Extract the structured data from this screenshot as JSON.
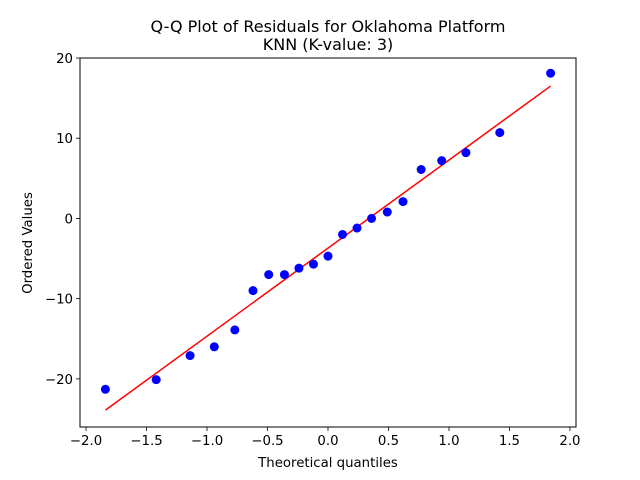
{
  "chart_data": {
    "type": "scatter",
    "title_line1": "Q-Q Plot of Residuals for Oklahoma Platform",
    "title_line2": "KNN (K-value: 3)",
    "xlabel": "Theoretical quantiles",
    "ylabel": "Ordered Values",
    "xlim": [
      -2.05,
      2.05
    ],
    "ylim": [
      -26,
      20
    ],
    "xticks": [
      -2.0,
      -1.5,
      -1.0,
      -0.5,
      0.0,
      0.5,
      1.0,
      1.5,
      2.0
    ],
    "xtick_labels": [
      "−2.0",
      "−1.5",
      "−1.0",
      "−0.5",
      "0.0",
      "0.5",
      "1.0",
      "1.5",
      "2.0"
    ],
    "yticks": [
      -20,
      -10,
      0,
      10,
      20
    ],
    "ytick_labels": [
      "−20",
      "−10",
      "0",
      "10",
      "20"
    ],
    "grid": false,
    "points": {
      "x": [
        -1.84,
        -1.42,
        -1.14,
        -0.94,
        -0.77,
        -0.62,
        -0.49,
        -0.36,
        -0.24,
        -0.12,
        0.0,
        0.12,
        0.24,
        0.36,
        0.49,
        0.62,
        0.77,
        0.94,
        1.14,
        1.42,
        1.84
      ],
      "y": [
        -21.3,
        -20.1,
        -17.1,
        -16.0,
        -13.9,
        -9.0,
        -7.0,
        -7.0,
        -6.2,
        -5.7,
        -4.7,
        -2.0,
        -1.2,
        0.0,
        0.8,
        2.1,
        6.1,
        7.2,
        8.2,
        10.7,
        18.1
      ],
      "color": "#0000ff"
    },
    "fit_line": {
      "x": [
        -1.84,
        1.84
      ],
      "y": [
        -23.9,
        16.5
      ],
      "color": "#ff0000"
    }
  }
}
